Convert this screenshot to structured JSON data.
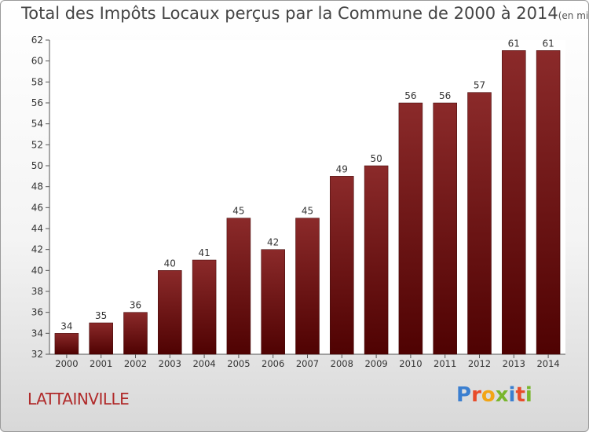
{
  "chart_data": {
    "type": "bar",
    "title": "Total des Impôts Locaux perçus par la Commune de 2000 à 2014",
    "title_unit": "(en milliers d'€)",
    "categories": [
      "2000",
      "2001",
      "2002",
      "2003",
      "2004",
      "2005",
      "2006",
      "2007",
      "2008",
      "2009",
      "2010",
      "2011",
      "2012",
      "2013",
      "2014"
    ],
    "values": [
      34,
      35,
      36,
      40,
      41,
      45,
      42,
      45,
      49,
      50,
      56,
      56,
      57,
      61,
      61
    ],
    "ylim": [
      32,
      62
    ],
    "yticks": [
      32,
      34,
      36,
      38,
      40,
      42,
      44,
      46,
      48,
      50,
      52,
      54,
      56,
      58,
      60,
      62
    ],
    "grid": false,
    "bar_color": "#8b2a2a",
    "bar_color_dark": "#4f0202"
  },
  "footer": {
    "commune": "LATTAINVILLE",
    "logo": "Proxiti",
    "logo_colors": [
      "#3b7fd0",
      "#e84c2b",
      "#f2a516",
      "#79b62d",
      "#3b7fd0",
      "#e84c2b",
      "#79b62d"
    ]
  }
}
